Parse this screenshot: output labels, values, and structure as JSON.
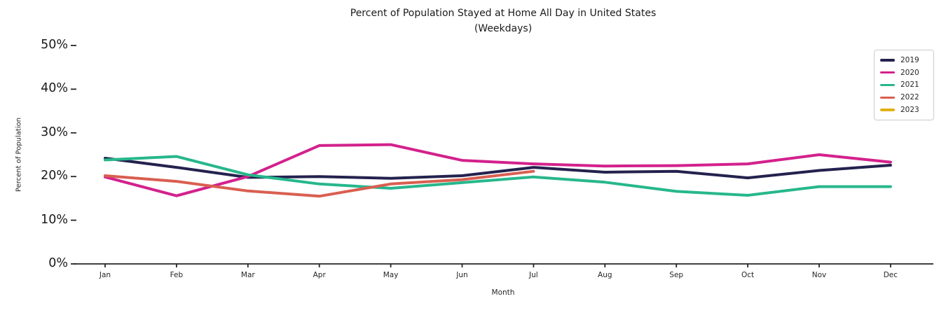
{
  "chart_data": {
    "type": "line",
    "title": "Percent of Population Stayed at Home All Day in United States",
    "subtitle": "(Weekdays)",
    "xlabel": "Month",
    "ylabel": "Percent of Population",
    "categories": [
      "Jan",
      "Feb",
      "Mar",
      "Apr",
      "May",
      "Jun",
      "Jul",
      "Aug",
      "Sep",
      "Oct",
      "Nov",
      "Dec"
    ],
    "ytick_labels": [
      "0%",
      "10%",
      "20%",
      "30%",
      "40%",
      "50%"
    ],
    "ytick_values": [
      0,
      10,
      20,
      30,
      40,
      50
    ],
    "ylim": [
      0,
      52
    ],
    "grid": false,
    "legend_position": "upper right",
    "axis_color": "#262626",
    "series": [
      {
        "name": "2019",
        "color": "#23224e",
        "values": [
          24.2,
          22.1,
          19.8,
          20.0,
          19.6,
          20.2,
          22.1,
          21.0,
          21.2,
          19.7,
          21.4,
          22.6
        ]
      },
      {
        "name": "2020",
        "color": "#d3218c",
        "values": [
          19.9,
          15.6,
          20.0,
          27.1,
          27.3,
          23.7,
          22.9,
          22.4,
          22.5,
          22.9,
          25.0,
          23.3
        ]
      },
      {
        "name": "2021",
        "color": "#27b78c",
        "values": [
          23.8,
          24.6,
          20.4,
          18.3,
          17.3,
          18.6,
          19.9,
          18.7,
          16.6,
          15.7,
          17.7,
          17.7
        ]
      },
      {
        "name": "2022",
        "color": "#d95f50",
        "values": [
          20.2,
          18.9,
          16.7,
          15.5,
          18.3,
          19.3,
          21.2,
          null,
          null,
          null,
          null,
          null
        ]
      },
      {
        "name": "2023",
        "color": "#e0b116",
        "values": [
          null,
          null,
          null,
          null,
          null,
          null,
          null,
          null,
          null,
          null,
          null,
          null
        ]
      }
    ]
  }
}
